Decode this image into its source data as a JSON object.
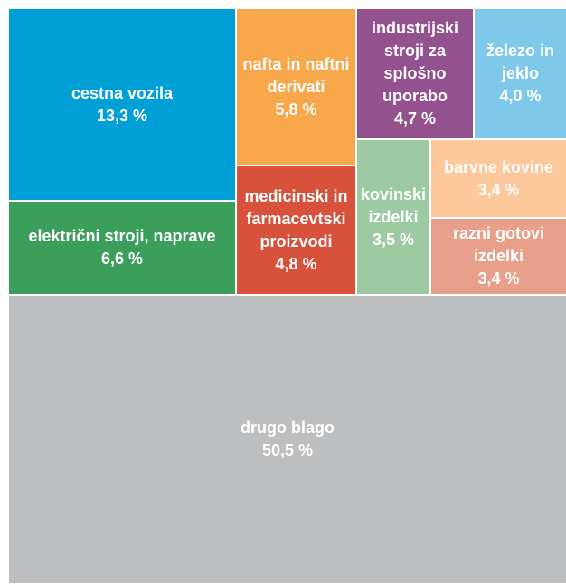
{
  "chart_data": {
    "type": "treemap",
    "categories": [
      "cestna vozila",
      "električni stroji, naprave",
      "nafta in naftni derivati",
      "medicinski in farmacevtski proizvodi",
      "industrijski stroji za splošno uporabo",
      "železo in jeklo",
      "kovinski izdelki",
      "barvne kovine",
      "razni gotovi izdelki",
      "drugo blago"
    ],
    "values": [
      13.3,
      6.6,
      5.8,
      4.8,
      4.7,
      4.0,
      3.5,
      3.4,
      3.4,
      50.5
    ],
    "value_labels": [
      "13,3 %",
      "6,6 %",
      "5,8 %",
      "4,8 %",
      "4,7 %",
      "4,0 %",
      "3,5 %",
      "3,4 %",
      "3,4 %",
      "50,5 %"
    ],
    "colors": [
      "#00a0d6",
      "#3b9e5b",
      "#f8a84b",
      "#d8513b",
      "#93518e",
      "#7ec8ea",
      "#9dcaa3",
      "#fdc89b",
      "#e9a08b",
      "#bdbec0"
    ]
  }
}
